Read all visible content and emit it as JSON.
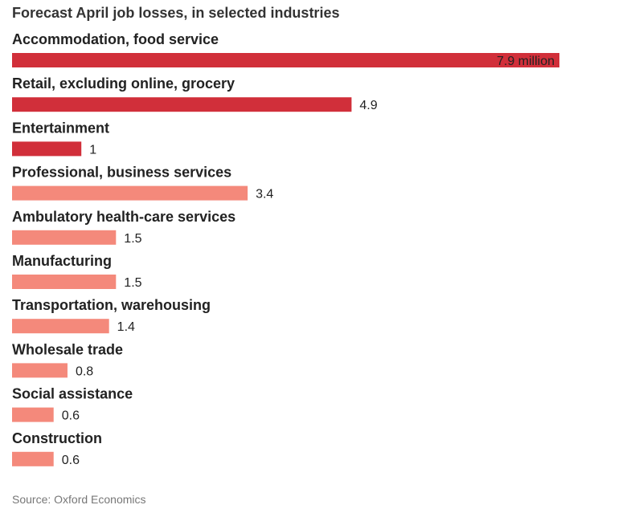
{
  "chart_data": {
    "type": "bar",
    "orientation": "horizontal",
    "title": "Forecast April job losses, in selected industries",
    "source": "Source: Oxford Economics",
    "categories": [
      "Accommodation, food service",
      "Retail, excluding online, grocery",
      "Entertainment",
      "Professional, business services",
      "Ambulatory health-care services",
      "Manufacturing",
      "Transportation, warehousing",
      "Wholesale trade",
      "Social assistance",
      "Construction"
    ],
    "values": [
      7.9,
      4.9,
      1,
      3.4,
      1.5,
      1.5,
      1.4,
      0.8,
      0.6,
      0.6
    ],
    "value_labels": [
      "7.9 million",
      "4.9",
      "1",
      "3.4",
      "1.5",
      "1.5",
      "1.4",
      "0.8",
      "0.6",
      "0.6"
    ],
    "highlight": [
      true,
      true,
      true,
      false,
      false,
      false,
      false,
      false,
      false,
      false
    ],
    "xlim": [
      0,
      7.9
    ],
    "xlabel": "",
    "ylabel": "",
    "grid": false,
    "colors": {
      "highlight": "#d12f3a",
      "normal": "#f4897b"
    }
  }
}
